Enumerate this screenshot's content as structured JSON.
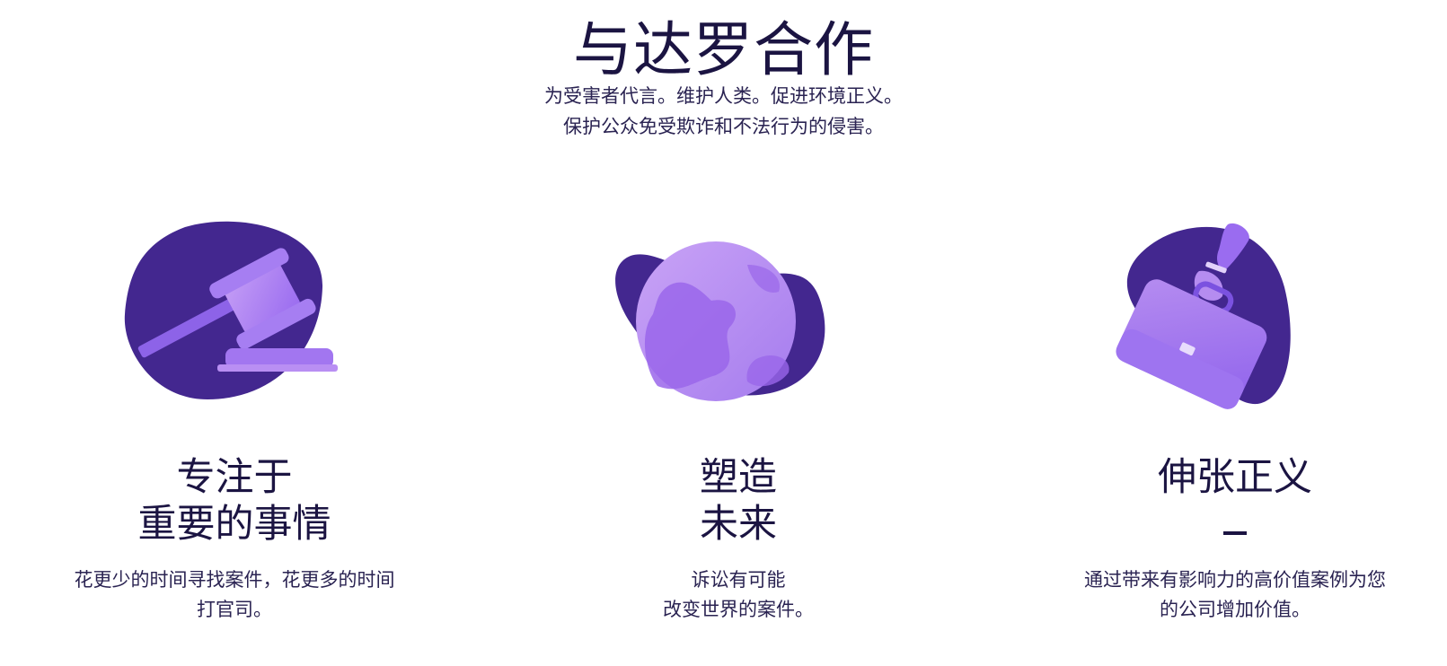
{
  "hero": {
    "title": "与达罗合作",
    "subtitle_line1": "为受害者代言。维护人类。促进环境正义。",
    "subtitle_line2": "保护公众免受欺诈和不法行为的侵害。"
  },
  "features": [
    {
      "icon": "gavel-icon",
      "heading_line1": "专注于",
      "heading_line2": "重要的事情",
      "text_line1": "花更少的时间寻找案件，花更多的时间",
      "text_line2": "打官司。"
    },
    {
      "icon": "globe-icon",
      "heading_line1": "塑造",
      "heading_line2": "未来",
      "text_line1": "诉讼有可能",
      "text_line2": "改变世界的案件。"
    },
    {
      "icon": "briefcase-icon",
      "heading_line1": "伸张正义",
      "heading_line2": "",
      "text_line1": "通过带来有影响力的高价值案例为您",
      "text_line2": "的公司增加价值。"
    }
  ],
  "colors": {
    "heading": "#1b1442",
    "blob": "#43278f",
    "accent_light": "#b58cf0",
    "accent_mid": "#9a6cf0"
  }
}
